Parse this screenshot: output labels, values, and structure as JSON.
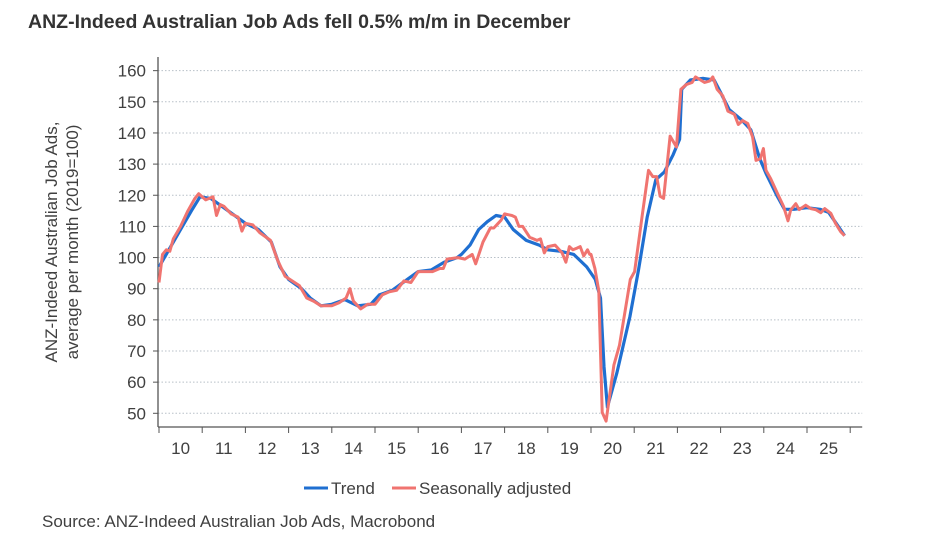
{
  "chart_data": {
    "type": "line",
    "title": "ANZ-Indeed Australian Job Ads fell 0.5% m/m in December",
    "ylabel_lines": [
      "ANZ-Indeed Australian Job Ads,",
      "average per month (2019=100)"
    ],
    "xlabel": "",
    "source": "Source: ANZ-Indeed Australian Job Ads, Macrobond",
    "ylim": [
      46,
      163
    ],
    "yticks": [
      50,
      60,
      70,
      80,
      90,
      100,
      110,
      120,
      130,
      140,
      150,
      160
    ],
    "xlim": [
      2010,
      2026
    ],
    "xtick_labels": [
      "10",
      "11",
      "12",
      "13",
      "14",
      "15",
      "16",
      "17",
      "18",
      "19",
      "20",
      "21",
      "22",
      "23",
      "24",
      "25"
    ],
    "grid": "horizontal dotted",
    "legend_position": "bottom",
    "series": [
      {
        "name": "Trend",
        "color": "#1f6fd1",
        "points": [
          [
            2010.0,
            97
          ],
          [
            2010.25,
            103
          ],
          [
            2010.5,
            109
          ],
          [
            2010.75,
            115
          ],
          [
            2010.95,
            119.5
          ],
          [
            2011.2,
            119
          ],
          [
            2011.5,
            116
          ],
          [
            2011.8,
            113
          ],
          [
            2012.0,
            111
          ],
          [
            2012.3,
            109
          ],
          [
            2012.6,
            105
          ],
          [
            2012.8,
            97
          ],
          [
            2013.0,
            93
          ],
          [
            2013.3,
            90
          ],
          [
            2013.5,
            87
          ],
          [
            2013.75,
            84.5
          ],
          [
            2014.0,
            85
          ],
          [
            2014.3,
            86.5
          ],
          [
            2014.6,
            84.5
          ],
          [
            2014.9,
            85
          ],
          [
            2015.1,
            88
          ],
          [
            2015.4,
            89.5
          ],
          [
            2015.7,
            92.5
          ],
          [
            2016.0,
            95.5
          ],
          [
            2016.3,
            96
          ],
          [
            2016.6,
            98.5
          ],
          [
            2016.9,
            100
          ],
          [
            2017.0,
            101
          ],
          [
            2017.2,
            104
          ],
          [
            2017.4,
            109
          ],
          [
            2017.6,
            111.5
          ],
          [
            2017.8,
            113.5
          ],
          [
            2018.0,
            113
          ],
          [
            2018.2,
            109
          ],
          [
            2018.5,
            105.5
          ],
          [
            2018.8,
            104
          ],
          [
            2019.0,
            102.5
          ],
          [
            2019.3,
            102
          ],
          [
            2019.6,
            101
          ],
          [
            2019.9,
            97
          ],
          [
            2020.1,
            93
          ],
          [
            2020.22,
            87
          ],
          [
            2020.3,
            65
          ],
          [
            2020.38,
            52
          ],
          [
            2020.6,
            63
          ],
          [
            2020.9,
            81
          ],
          [
            2021.1,
            96
          ],
          [
            2021.3,
            113
          ],
          [
            2021.5,
            125
          ],
          [
            2021.7,
            127.5
          ],
          [
            2021.9,
            133
          ],
          [
            2022.05,
            138
          ],
          [
            2022.1,
            154
          ],
          [
            2022.3,
            157
          ],
          [
            2022.6,
            157.5
          ],
          [
            2022.85,
            157
          ],
          [
            2023.0,
            153
          ],
          [
            2023.2,
            147.5
          ],
          [
            2023.5,
            144
          ],
          [
            2023.7,
            141
          ],
          [
            2023.9,
            132
          ],
          [
            2024.05,
            127
          ],
          [
            2024.3,
            120
          ],
          [
            2024.48,
            115.5
          ],
          [
            2024.7,
            115.5
          ],
          [
            2025.0,
            116
          ],
          [
            2025.3,
            115.5
          ],
          [
            2025.5,
            114.5
          ],
          [
            2025.7,
            110.5
          ],
          [
            2025.87,
            107
          ]
        ]
      },
      {
        "name": "Seasonally adjusted",
        "color": "#f07470",
        "points": [
          [
            2010.0,
            92
          ],
          [
            2010.08,
            101
          ],
          [
            2010.17,
            102.5
          ],
          [
            2010.25,
            102
          ],
          [
            2010.33,
            106
          ],
          [
            2010.5,
            110
          ],
          [
            2010.67,
            115
          ],
          [
            2010.83,
            119
          ],
          [
            2010.92,
            120.5
          ],
          [
            2011.08,
            118.5
          ],
          [
            2011.25,
            119.5
          ],
          [
            2011.33,
            113.5
          ],
          [
            2011.42,
            117
          ],
          [
            2011.5,
            116.5
          ],
          [
            2011.67,
            114
          ],
          [
            2011.83,
            113
          ],
          [
            2011.92,
            108.5
          ],
          [
            2012.0,
            111
          ],
          [
            2012.17,
            110.5
          ],
          [
            2012.33,
            108
          ],
          [
            2012.58,
            105.5
          ],
          [
            2012.75,
            99
          ],
          [
            2012.92,
            94
          ],
          [
            2013.08,
            92.5
          ],
          [
            2013.25,
            91
          ],
          [
            2013.42,
            87
          ],
          [
            2013.58,
            86
          ],
          [
            2013.75,
            84.5
          ],
          [
            2014.0,
            84.5
          ],
          [
            2014.17,
            85.5
          ],
          [
            2014.33,
            87
          ],
          [
            2014.42,
            90
          ],
          [
            2014.5,
            86
          ],
          [
            2014.67,
            83.5
          ],
          [
            2014.83,
            85
          ],
          [
            2015.0,
            85
          ],
          [
            2015.17,
            88
          ],
          [
            2015.33,
            89
          ],
          [
            2015.5,
            89.5
          ],
          [
            2015.67,
            92.5
          ],
          [
            2015.83,
            92
          ],
          [
            2016.0,
            95.5
          ],
          [
            2016.17,
            95.5
          ],
          [
            2016.33,
            95.5
          ],
          [
            2016.5,
            96.5
          ],
          [
            2016.58,
            96.5
          ],
          [
            2016.67,
            99.5
          ],
          [
            2016.92,
            100
          ],
          [
            2017.08,
            99.5
          ],
          [
            2017.25,
            101
          ],
          [
            2017.33,
            98
          ],
          [
            2017.5,
            105
          ],
          [
            2017.67,
            109.5
          ],
          [
            2017.75,
            109.5
          ],
          [
            2017.92,
            112
          ],
          [
            2018.0,
            114
          ],
          [
            2018.17,
            113.5
          ],
          [
            2018.25,
            113
          ],
          [
            2018.33,
            110
          ],
          [
            2018.42,
            110
          ],
          [
            2018.58,
            106.5
          ],
          [
            2018.75,
            105.5
          ],
          [
            2018.83,
            106
          ],
          [
            2018.92,
            101.5
          ],
          [
            2019.0,
            103.5
          ],
          [
            2019.17,
            104
          ],
          [
            2019.33,
            101.5
          ],
          [
            2019.42,
            98.5
          ],
          [
            2019.5,
            103.5
          ],
          [
            2019.58,
            102.5
          ],
          [
            2019.67,
            103
          ],
          [
            2019.75,
            103.5
          ],
          [
            2019.83,
            100.5
          ],
          [
            2019.92,
            102.5
          ],
          [
            2020.05,
            101
          ],
          [
            2020.15,
            99
          ],
          [
            2020.3,
            98.7
          ],
          [
            2020.4,
            97
          ],
          [
            2020.5,
            95.5
          ],
          [
            2020.6,
            95.5
          ],
          [
            2020.68,
            96.5
          ],
          [
            2020.75,
            89.3
          ],
          [
            2020.83,
            50.3
          ],
          [
            2020.92,
            47.5
          ]
        ]
      }
    ]
  },
  "legend": {
    "trend": "Trend",
    "sa": "Seasonally adjusted"
  }
}
